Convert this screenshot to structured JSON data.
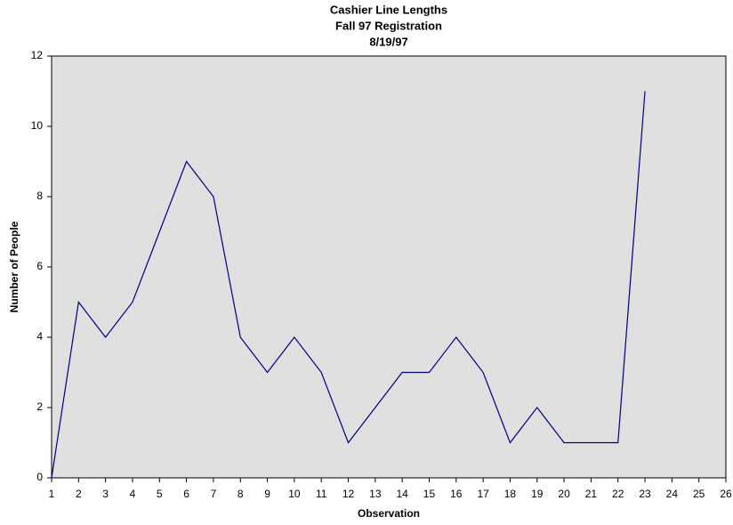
{
  "chart_data": {
    "type": "line",
    "title": [
      "Cashier Line Lengths",
      "Fall 97 Registration",
      "8/19/97"
    ],
    "x_label": "Observation",
    "y_label": "Number of People",
    "x": [
      1,
      2,
      3,
      4,
      5,
      6,
      7,
      8,
      9,
      10,
      11,
      12,
      13,
      14,
      15,
      16,
      17,
      18,
      19,
      20,
      21,
      22,
      23
    ],
    "series": [
      {
        "name": "Number of People",
        "color": "#000080",
        "values": [
          0,
          5,
          4,
          5,
          7,
          9,
          8,
          4,
          3,
          4,
          3,
          1,
          2,
          3,
          3,
          4,
          3,
          1,
          2,
          1,
          1,
          1,
          11
        ]
      }
    ],
    "xlim": [
      1,
      26
    ],
    "xticks": [
      1,
      2,
      3,
      4,
      5,
      6,
      7,
      8,
      9,
      10,
      11,
      12,
      13,
      14,
      15,
      16,
      17,
      18,
      19,
      20,
      21,
      22,
      23,
      24,
      25,
      26
    ],
    "ylim": [
      0,
      12
    ],
    "yticks": [
      0,
      2,
      4,
      6,
      8,
      10,
      12
    ],
    "grid": false,
    "plot_background": "#e0e0e0"
  }
}
